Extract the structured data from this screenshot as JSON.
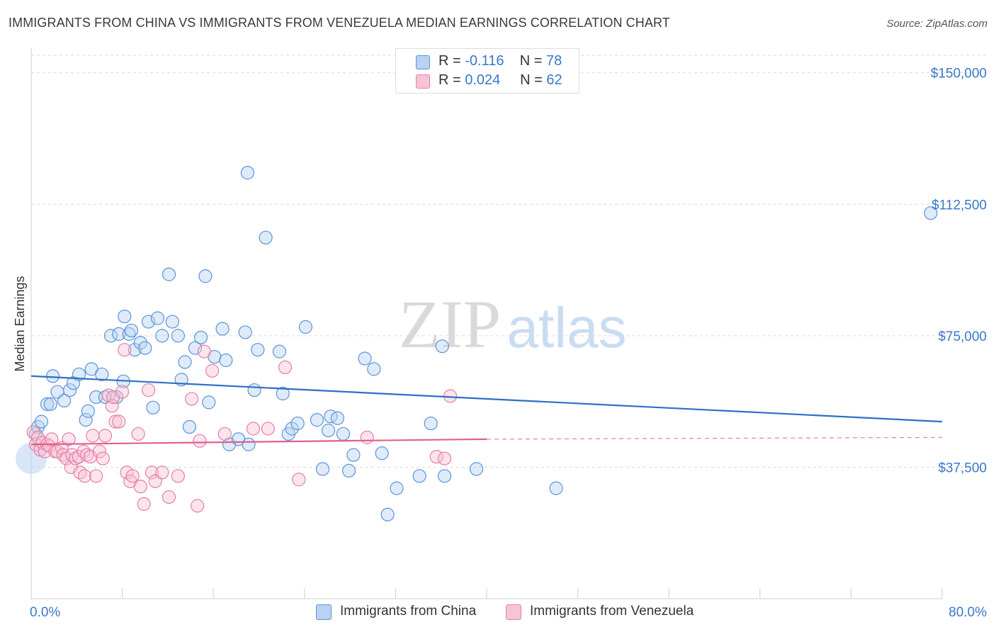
{
  "title": "IMMIGRANTS FROM CHINA VS IMMIGRANTS FROM VENEZUELA MEDIAN EARNINGS CORRELATION CHART",
  "source": "Source: ZipAtlas.com",
  "watermark": {
    "zip": "ZIP",
    "atlas": "atlas"
  },
  "legend": {
    "rows": [
      {
        "r_label": "R = ",
        "r_value": "-0.116",
        "n_label": "N = ",
        "n_value": "78"
      },
      {
        "r_label": "R = ",
        "r_value": "0.024",
        "n_label": "N = ",
        "n_value": "62"
      }
    ]
  },
  "bottom_legend": [
    "Immigrants from China",
    "Immigrants from Venezuela"
  ],
  "colors": {
    "china": "#5b93d8",
    "china_fill": "#b9d2f2",
    "venezuela": "#e57fa3",
    "venezuela_fill": "#f7c3d6",
    "axis_label": "#3a78c9",
    "grid": "#d9d9d9"
  },
  "chart_data": {
    "type": "scatter",
    "title": "IMMIGRANTS FROM CHINA VS IMMIGRANTS FROM VENEZUELA MEDIAN EARNINGS CORRELATION CHART",
    "xlabel": "",
    "ylabel": "Median Earnings",
    "xlim": [
      0,
      80
    ],
    "ylim": [
      0,
      155000
    ],
    "x_tick_labels": [
      "0.0%",
      "80.0%"
    ],
    "y_ticks": [
      37500,
      75000,
      112500,
      150000
    ],
    "y_tick_labels": [
      "$37,500",
      "$75,000",
      "$112,500",
      "$150,000"
    ],
    "series": [
      {
        "name": "Immigrants from China",
        "r": -0.116,
        "n": 78,
        "trend": {
          "x": [
            0,
            80
          ],
          "y": [
            63500,
            50500
          ]
        },
        "points": [
          [
            0.4,
            47000
          ],
          [
            0.6,
            49000
          ],
          [
            0.9,
            50500
          ],
          [
            1.4,
            55500
          ],
          [
            1.7,
            55500
          ],
          [
            1.9,
            63500
          ],
          [
            2.3,
            59000
          ],
          [
            2.9,
            56500
          ],
          [
            3.4,
            59500
          ],
          [
            3.7,
            61500
          ],
          [
            4.2,
            64000
          ],
          [
            4.8,
            51000
          ],
          [
            5.0,
            53500
          ],
          [
            5.3,
            65500
          ],
          [
            5.7,
            57500
          ],
          [
            6.2,
            64000
          ],
          [
            6.5,
            57500
          ],
          [
            7.0,
            75000
          ],
          [
            7.5,
            57500
          ],
          [
            7.7,
            75500
          ],
          [
            8.1,
            62000
          ],
          [
            8.2,
            80500
          ],
          [
            8.6,
            75500
          ],
          [
            8.8,
            76500
          ],
          [
            9.1,
            71000
          ],
          [
            9.6,
            73000
          ],
          [
            10.0,
            71500
          ],
          [
            10.3,
            79000
          ],
          [
            10.7,
            54500
          ],
          [
            11.1,
            80000
          ],
          [
            11.5,
            75000
          ],
          [
            12.1,
            92500
          ],
          [
            12.4,
            79000
          ],
          [
            12.9,
            75000
          ],
          [
            13.2,
            62500
          ],
          [
            13.5,
            67500
          ],
          [
            13.9,
            49000
          ],
          [
            14.4,
            71500
          ],
          [
            14.9,
            74500
          ],
          [
            15.3,
            92000
          ],
          [
            15.6,
            56000
          ],
          [
            16.1,
            69000
          ],
          [
            16.8,
            77000
          ],
          [
            17.1,
            68000
          ],
          [
            17.4,
            44000
          ],
          [
            18.2,
            45500
          ],
          [
            18.8,
            76000
          ],
          [
            19.1,
            44000
          ],
          [
            19.6,
            59500
          ],
          [
            19.9,
            71000
          ],
          [
            20.6,
            103000
          ],
          [
            21.8,
            70500
          ],
          [
            22.1,
            58500
          ],
          [
            22.6,
            47000
          ],
          [
            22.9,
            48500
          ],
          [
            23.4,
            50000
          ],
          [
            24.1,
            77500
          ],
          [
            25.1,
            51000
          ],
          [
            25.6,
            37000
          ],
          [
            26.1,
            48000
          ],
          [
            26.3,
            52000
          ],
          [
            26.9,
            51500
          ],
          [
            27.4,
            47000
          ],
          [
            27.9,
            36500
          ],
          [
            28.3,
            41000
          ],
          [
            29.3,
            68500
          ],
          [
            30.1,
            65500
          ],
          [
            30.8,
            41500
          ],
          [
            31.3,
            24000
          ],
          [
            32.1,
            31500
          ],
          [
            34.1,
            35000
          ],
          [
            35.1,
            50000
          ],
          [
            36.1,
            72000
          ],
          [
            36.3,
            35000
          ],
          [
            39.1,
            37000
          ],
          [
            46.1,
            31500
          ],
          [
            79.0,
            110000
          ],
          [
            19.0,
            121500
          ]
        ]
      },
      {
        "name": "Immigrants from Venezuela",
        "r": 0.024,
        "n": 62,
        "trend": {
          "x": [
            0,
            40,
            80
          ],
          "y": [
            44000,
            45500,
            46000
          ],
          "dashed_from": 40
        },
        "points": [
          [
            0.2,
            47500
          ],
          [
            0.4,
            44000
          ],
          [
            0.6,
            46000
          ],
          [
            0.8,
            42500
          ],
          [
            1.0,
            44500
          ],
          [
            1.2,
            42000
          ],
          [
            1.4,
            44000
          ],
          [
            1.6,
            43500
          ],
          [
            1.8,
            45500
          ],
          [
            2.1,
            42000
          ],
          [
            2.3,
            42000
          ],
          [
            2.7,
            43000
          ],
          [
            2.8,
            41000
          ],
          [
            3.1,
            40000
          ],
          [
            3.3,
            45500
          ],
          [
            3.5,
            37500
          ],
          [
            3.6,
            41000
          ],
          [
            3.9,
            40000
          ],
          [
            4.2,
            40500
          ],
          [
            4.3,
            36000
          ],
          [
            4.6,
            42000
          ],
          [
            4.7,
            35000
          ],
          [
            4.9,
            41000
          ],
          [
            5.2,
            40500
          ],
          [
            5.4,
            46500
          ],
          [
            5.7,
            35000
          ],
          [
            6.0,
            42000
          ],
          [
            6.3,
            40000
          ],
          [
            6.5,
            46500
          ],
          [
            6.8,
            58000
          ],
          [
            7.1,
            55000
          ],
          [
            7.2,
            57500
          ],
          [
            7.4,
            50500
          ],
          [
            7.7,
            50500
          ],
          [
            8.0,
            59000
          ],
          [
            8.2,
            71000
          ],
          [
            8.4,
            36000
          ],
          [
            8.7,
            33500
          ],
          [
            8.9,
            35000
          ],
          [
            9.4,
            47000
          ],
          [
            9.6,
            32000
          ],
          [
            9.9,
            27000
          ],
          [
            10.3,
            59500
          ],
          [
            10.6,
            36000
          ],
          [
            10.9,
            33500
          ],
          [
            11.5,
            36000
          ],
          [
            12.1,
            29000
          ],
          [
            12.9,
            35000
          ],
          [
            14.1,
            57000
          ],
          [
            14.6,
            26500
          ],
          [
            14.8,
            45000
          ],
          [
            15.2,
            70500
          ],
          [
            15.9,
            65000
          ],
          [
            17.0,
            47000
          ],
          [
            19.5,
            48500
          ],
          [
            20.8,
            48500
          ],
          [
            22.3,
            66000
          ],
          [
            23.5,
            34000
          ],
          [
            29.5,
            46000
          ],
          [
            35.6,
            40500
          ],
          [
            36.3,
            40000
          ],
          [
            36.8,
            57800
          ]
        ]
      }
    ]
  }
}
